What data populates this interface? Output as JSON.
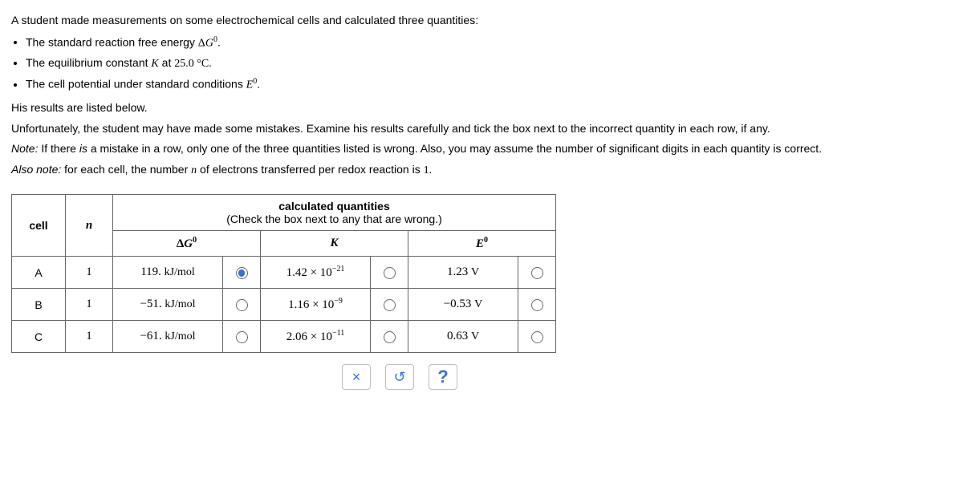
{
  "intro": {
    "line1": "A student made measurements on some electrochemical cells and calculated three quantities:",
    "bullet1_pre": "The standard reaction free energy ",
    "bullet2_pre": "The equilibrium constant ",
    "bullet2_K": "K",
    "bullet2_mid": " at ",
    "bullet2_temp": "25.0 °C.",
    "bullet3_pre": "The cell potential under standard conditions ",
    "line2": "His results are listed below.",
    "line3": "Unfortunately, the student may have made some mistakes. Examine his results carefully and tick the box next to the incorrect quantity in each row, if any.",
    "note_label": "Note:",
    "note_body": " If there ",
    "note_is": "is",
    "note_body2": " a mistake in a row, only one of the three quantities listed is wrong. Also, you may assume the number of significant digits in each quantity is correct.",
    "alsonote_label": "Also note:",
    "alsonote_body": " for each cell, the number ",
    "alsonote_n": "n",
    "alsonote_body2": " of electrons transferred per redox reaction is ",
    "alsonote_val": "1."
  },
  "symbols": {
    "deltaG0_delta": "Δ",
    "deltaG0_G": "G",
    "zero": "0",
    "period": ".",
    "E": "E",
    "K": "K",
    "n": "n",
    "times": "×",
    "ten": "10"
  },
  "table": {
    "header_title": "calculated quantities",
    "header_sub": "(Check the box next to any that are wrong.)",
    "col_cell": "cell",
    "col_n": "n",
    "rows": [
      {
        "cell": "A",
        "n": "1",
        "dG_val": "119.",
        "dG_unit": "kJ/mol",
        "dG_selected": true,
        "K_mant": "1.42",
        "K_exp": "−21",
        "K_selected": false,
        "E_val": "1.23",
        "E_unit": "V",
        "E_selected": false
      },
      {
        "cell": "B",
        "n": "1",
        "dG_val": "−51.",
        "dG_unit": "kJ/mol",
        "dG_selected": false,
        "K_mant": "1.16",
        "K_exp": "−9",
        "K_selected": false,
        "E_val": "−0.53",
        "E_unit": "V",
        "E_selected": false
      },
      {
        "cell": "C",
        "n": "1",
        "dG_val": "−61.",
        "dG_unit": "kJ/mol",
        "dG_selected": false,
        "K_mant": "2.06",
        "K_exp": "−11",
        "K_selected": false,
        "E_val": "0.63",
        "E_unit": "V",
        "E_selected": false
      }
    ]
  },
  "toolbar": {
    "close": "×",
    "reset": "↺",
    "help": "?"
  },
  "colors": {
    "accent": "#3a6fd8",
    "border": "#666666",
    "toolborder": "#bdbdbd"
  }
}
